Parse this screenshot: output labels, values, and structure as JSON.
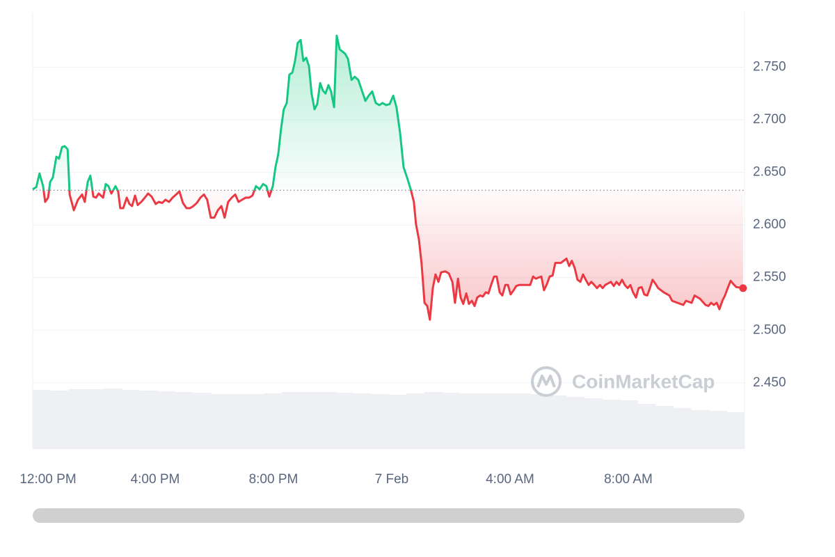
{
  "chart_data": {
    "type": "line",
    "watermark": "CoinMarketCap",
    "baseline": 2.633,
    "color_above": "#16c784",
    "color_below": "#ea3943",
    "grid": true,
    "xlim": [
      -0.14,
      23.93
    ],
    "ylim": [
      2.387,
      2.802
    ],
    "yticks": [
      {
        "value": 2.45,
        "label": "2.450"
      },
      {
        "value": 2.5,
        "label": "2.500"
      },
      {
        "value": 2.55,
        "label": "2.550"
      },
      {
        "value": 2.6,
        "label": "2.600"
      },
      {
        "value": 2.65,
        "label": "2.650"
      },
      {
        "value": 2.7,
        "label": "2.700"
      },
      {
        "value": 2.75,
        "label": "2.750"
      }
    ],
    "xticks": [
      {
        "value": 0,
        "label": "12:00 PM"
      },
      {
        "value": 4,
        "label": "4:00 PM"
      },
      {
        "value": 8,
        "label": "8:00 PM"
      },
      {
        "value": 12,
        "label": "7 Feb"
      },
      {
        "value": 16,
        "label": "4:00 AM"
      },
      {
        "value": 20,
        "label": "8:00 AM"
      }
    ],
    "x": [
      -0.14,
      -0.02,
      0.09,
      0.21,
      0.28,
      0.38,
      0.45,
      0.54,
      0.66,
      0.75,
      0.85,
      0.94,
      1.04,
      1.11,
      1.25,
      1.39,
      1.53,
      1.62,
      1.72,
      1.81,
      1.91,
      2.0,
      2.09,
      2.24,
      2.33,
      2.42,
      2.52,
      2.66,
      2.75,
      2.82,
      2.92,
      3.04,
      3.13,
      3.22,
      3.32,
      3.41,
      3.53,
      3.65,
      3.76,
      3.88,
      4.02,
      4.12,
      4.24,
      4.35,
      4.47,
      4.59,
      4.71,
      4.82,
      4.94,
      5.06,
      5.18,
      5.29,
      5.41,
      5.53,
      5.65,
      5.76,
      5.88,
      6.0,
      6.12,
      6.24,
      6.35,
      6.47,
      6.59,
      6.71,
      6.82,
      6.94,
      7.06,
      7.18,
      7.29,
      7.41,
      7.53,
      7.65,
      7.76,
      7.86,
      7.98,
      8.07,
      8.16,
      8.26,
      8.35,
      8.45,
      8.54,
      8.64,
      8.73,
      8.82,
      8.92,
      9.01,
      9.11,
      9.2,
      9.29,
      9.39,
      9.48,
      9.58,
      9.67,
      9.76,
      9.86,
      9.95,
      10.05,
      10.14,
      10.24,
      10.33,
      10.42,
      10.52,
      10.64,
      10.75,
      10.87,
      10.99,
      11.11,
      11.22,
      11.34,
      11.46,
      11.58,
      11.69,
      11.81,
      11.93,
      12.05,
      12.16,
      12.28,
      12.4,
      12.52,
      12.64,
      12.75,
      12.82,
      12.92,
      13.01,
      13.11,
      13.2,
      13.29,
      13.39,
      13.48,
      13.58,
      13.67,
      13.81,
      13.93,
      14.05,
      14.14,
      14.24,
      14.33,
      14.42,
      14.52,
      14.61,
      14.71,
      14.8,
      14.89,
      14.99,
      15.08,
      15.18,
      15.27,
      15.36,
      15.46,
      15.55,
      15.65,
      15.74,
      15.84,
      15.93,
      16.02,
      16.12,
      16.21,
      16.31,
      16.49,
      16.68,
      16.78,
      16.87,
      17.06,
      17.15,
      17.25,
      17.34,
      17.44,
      17.53,
      17.72,
      17.91,
      18.0,
      18.09,
      18.19,
      18.28,
      18.38,
      18.47,
      18.56,
      18.66,
      18.75,
      18.85,
      18.94,
      19.04,
      19.13,
      19.22,
      19.41,
      19.51,
      19.6,
      19.69,
      19.79,
      19.88,
      19.98,
      20.07,
      20.16,
      20.26,
      20.35,
      20.45,
      20.54,
      20.64,
      20.73,
      20.82,
      20.92,
      21.01,
      21.2,
      21.39,
      21.48,
      21.67,
      21.86,
      21.95,
      22.14,
      22.24,
      22.42,
      22.61,
      22.71,
      22.8,
      22.89,
      22.99,
      23.08,
      23.18,
      23.27,
      23.36,
      23.46,
      23.55,
      23.65,
      23.88
    ],
    "values": [
      2.634,
      2.636,
      2.649,
      2.637,
      2.622,
      2.626,
      2.641,
      2.645,
      2.665,
      2.663,
      2.674,
      2.675,
      2.672,
      2.629,
      2.614,
      2.624,
      2.629,
      2.622,
      2.641,
      2.647,
      2.627,
      2.626,
      2.63,
      2.626,
      2.639,
      2.637,
      2.63,
      2.637,
      2.632,
      2.616,
      2.616,
      2.626,
      2.62,
      2.618,
      2.628,
      2.619,
      2.622,
      2.626,
      2.63,
      2.627,
      2.62,
      2.622,
      2.621,
      2.624,
      2.622,
      2.626,
      2.629,
      2.632,
      2.621,
      2.616,
      2.616,
      2.618,
      2.621,
      2.626,
      2.629,
      2.624,
      2.607,
      2.607,
      2.614,
      2.618,
      2.607,
      2.622,
      2.626,
      2.629,
      2.622,
      2.624,
      2.626,
      2.626,
      2.628,
      2.637,
      2.634,
      2.639,
      2.637,
      2.627,
      2.637,
      2.655,
      2.667,
      2.692,
      2.71,
      2.716,
      2.743,
      2.745,
      2.756,
      2.773,
      2.776,
      2.756,
      2.759,
      2.751,
      2.725,
      2.71,
      2.715,
      2.735,
      2.728,
      2.725,
      2.733,
      2.727,
      2.712,
      2.78,
      2.767,
      2.765,
      2.763,
      2.758,
      2.738,
      2.741,
      2.738,
      2.728,
      2.718,
      2.723,
      2.727,
      2.716,
      2.714,
      2.716,
      2.714,
      2.715,
      2.723,
      2.712,
      2.688,
      2.655,
      2.645,
      2.634,
      2.622,
      2.601,
      2.586,
      2.563,
      2.526,
      2.523,
      2.51,
      2.54,
      2.553,
      2.546,
      2.555,
      2.556,
      2.554,
      2.546,
      2.526,
      2.549,
      2.531,
      2.525,
      2.535,
      2.525,
      2.528,
      2.523,
      2.531,
      2.533,
      2.532,
      2.536,
      2.535,
      2.543,
      2.551,
      2.551,
      2.536,
      2.533,
      2.543,
      2.543,
      2.534,
      2.538,
      2.542,
      2.543,
      2.543,
      2.543,
      2.551,
      2.549,
      2.551,
      2.538,
      2.544,
      2.551,
      2.552,
      2.564,
      2.564,
      2.568,
      2.561,
      2.566,
      2.559,
      2.548,
      2.546,
      2.553,
      2.548,
      2.543,
      2.546,
      2.543,
      2.54,
      2.543,
      2.54,
      2.543,
      2.546,
      2.542,
      2.546,
      2.543,
      2.548,
      2.543,
      2.54,
      2.543,
      2.536,
      2.531,
      2.54,
      2.541,
      2.534,
      2.533,
      2.54,
      2.548,
      2.544,
      2.54,
      2.536,
      2.533,
      2.528,
      2.526,
      2.524,
      2.528,
      2.526,
      2.533,
      2.53,
      2.524,
      2.523,
      2.526,
      2.524,
      2.526,
      2.52,
      2.528,
      2.533,
      2.54,
      2.547,
      2.544,
      2.541,
      2.54
    ],
    "volume": {
      "color": "#eef0f4",
      "y2lim": [
        0,
        100
      ],
      "values": [
        85,
        84,
        86,
        86,
        87,
        85,
        84,
        83,
        82,
        81,
        79,
        79,
        79,
        80,
        82,
        82,
        82,
        81,
        80,
        79,
        78,
        80,
        82,
        81,
        80,
        80,
        80,
        80,
        79,
        77,
        75,
        73,
        71,
        70,
        65,
        62,
        59,
        56,
        55,
        53
      ]
    }
  }
}
